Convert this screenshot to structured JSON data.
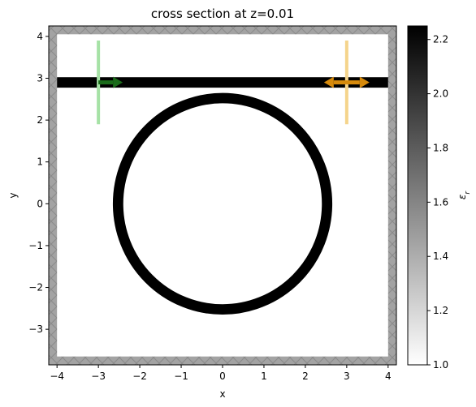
{
  "chart_data": {
    "type": "heatmap",
    "title": "cross section at z=0.01",
    "xlabel": "x",
    "ylabel": "y",
    "xlim": [
      -4.2,
      4.2
    ],
    "ylim": [
      -3.85,
      4.25
    ],
    "x_ticks": [
      -4,
      -3,
      -2,
      -1,
      0,
      1,
      2,
      3,
      4
    ],
    "x_tick_labels": [
      "−4",
      "−3",
      "−2",
      "−1",
      "0",
      "1",
      "2",
      "3",
      "4"
    ],
    "y_ticks": [
      -3,
      -2,
      -1,
      0,
      1,
      2,
      3,
      4
    ],
    "y_tick_labels": [
      "−3",
      "−2",
      "−1",
      "0",
      "1",
      "2",
      "3",
      "4"
    ],
    "boundary_thickness": 0.2,
    "waveguide": {
      "y_center": 2.9,
      "width": 0.25,
      "x_from": -4.0,
      "x_to": 4.0
    },
    "ring": {
      "center": [
        0,
        0
      ],
      "inner_radius": 2.4,
      "outer_radius": 2.65
    },
    "source": {
      "x": -3.0,
      "y_from": 1.9,
      "y_to": 3.9,
      "direction": "+x",
      "color": "#1a6b1a",
      "line_color": "#a6e2a6"
    },
    "monitor": {
      "x": 3.0,
      "y_from": 1.9,
      "y_to": 3.9,
      "direction": "both",
      "color": "#d68a0c",
      "line_color": "#f5d48c"
    },
    "colorbar": {
      "label": "ε_r",
      "min": 1.0,
      "max": 2.25,
      "ticks": [
        1.0,
        1.2,
        1.4,
        1.6,
        1.8,
        2.0,
        2.2
      ],
      "tick_labels": [
        "1.0",
        "1.2",
        "1.4",
        "1.6",
        "1.8",
        "2.0",
        "2.2"
      ],
      "colormap": "gray_r"
    }
  }
}
